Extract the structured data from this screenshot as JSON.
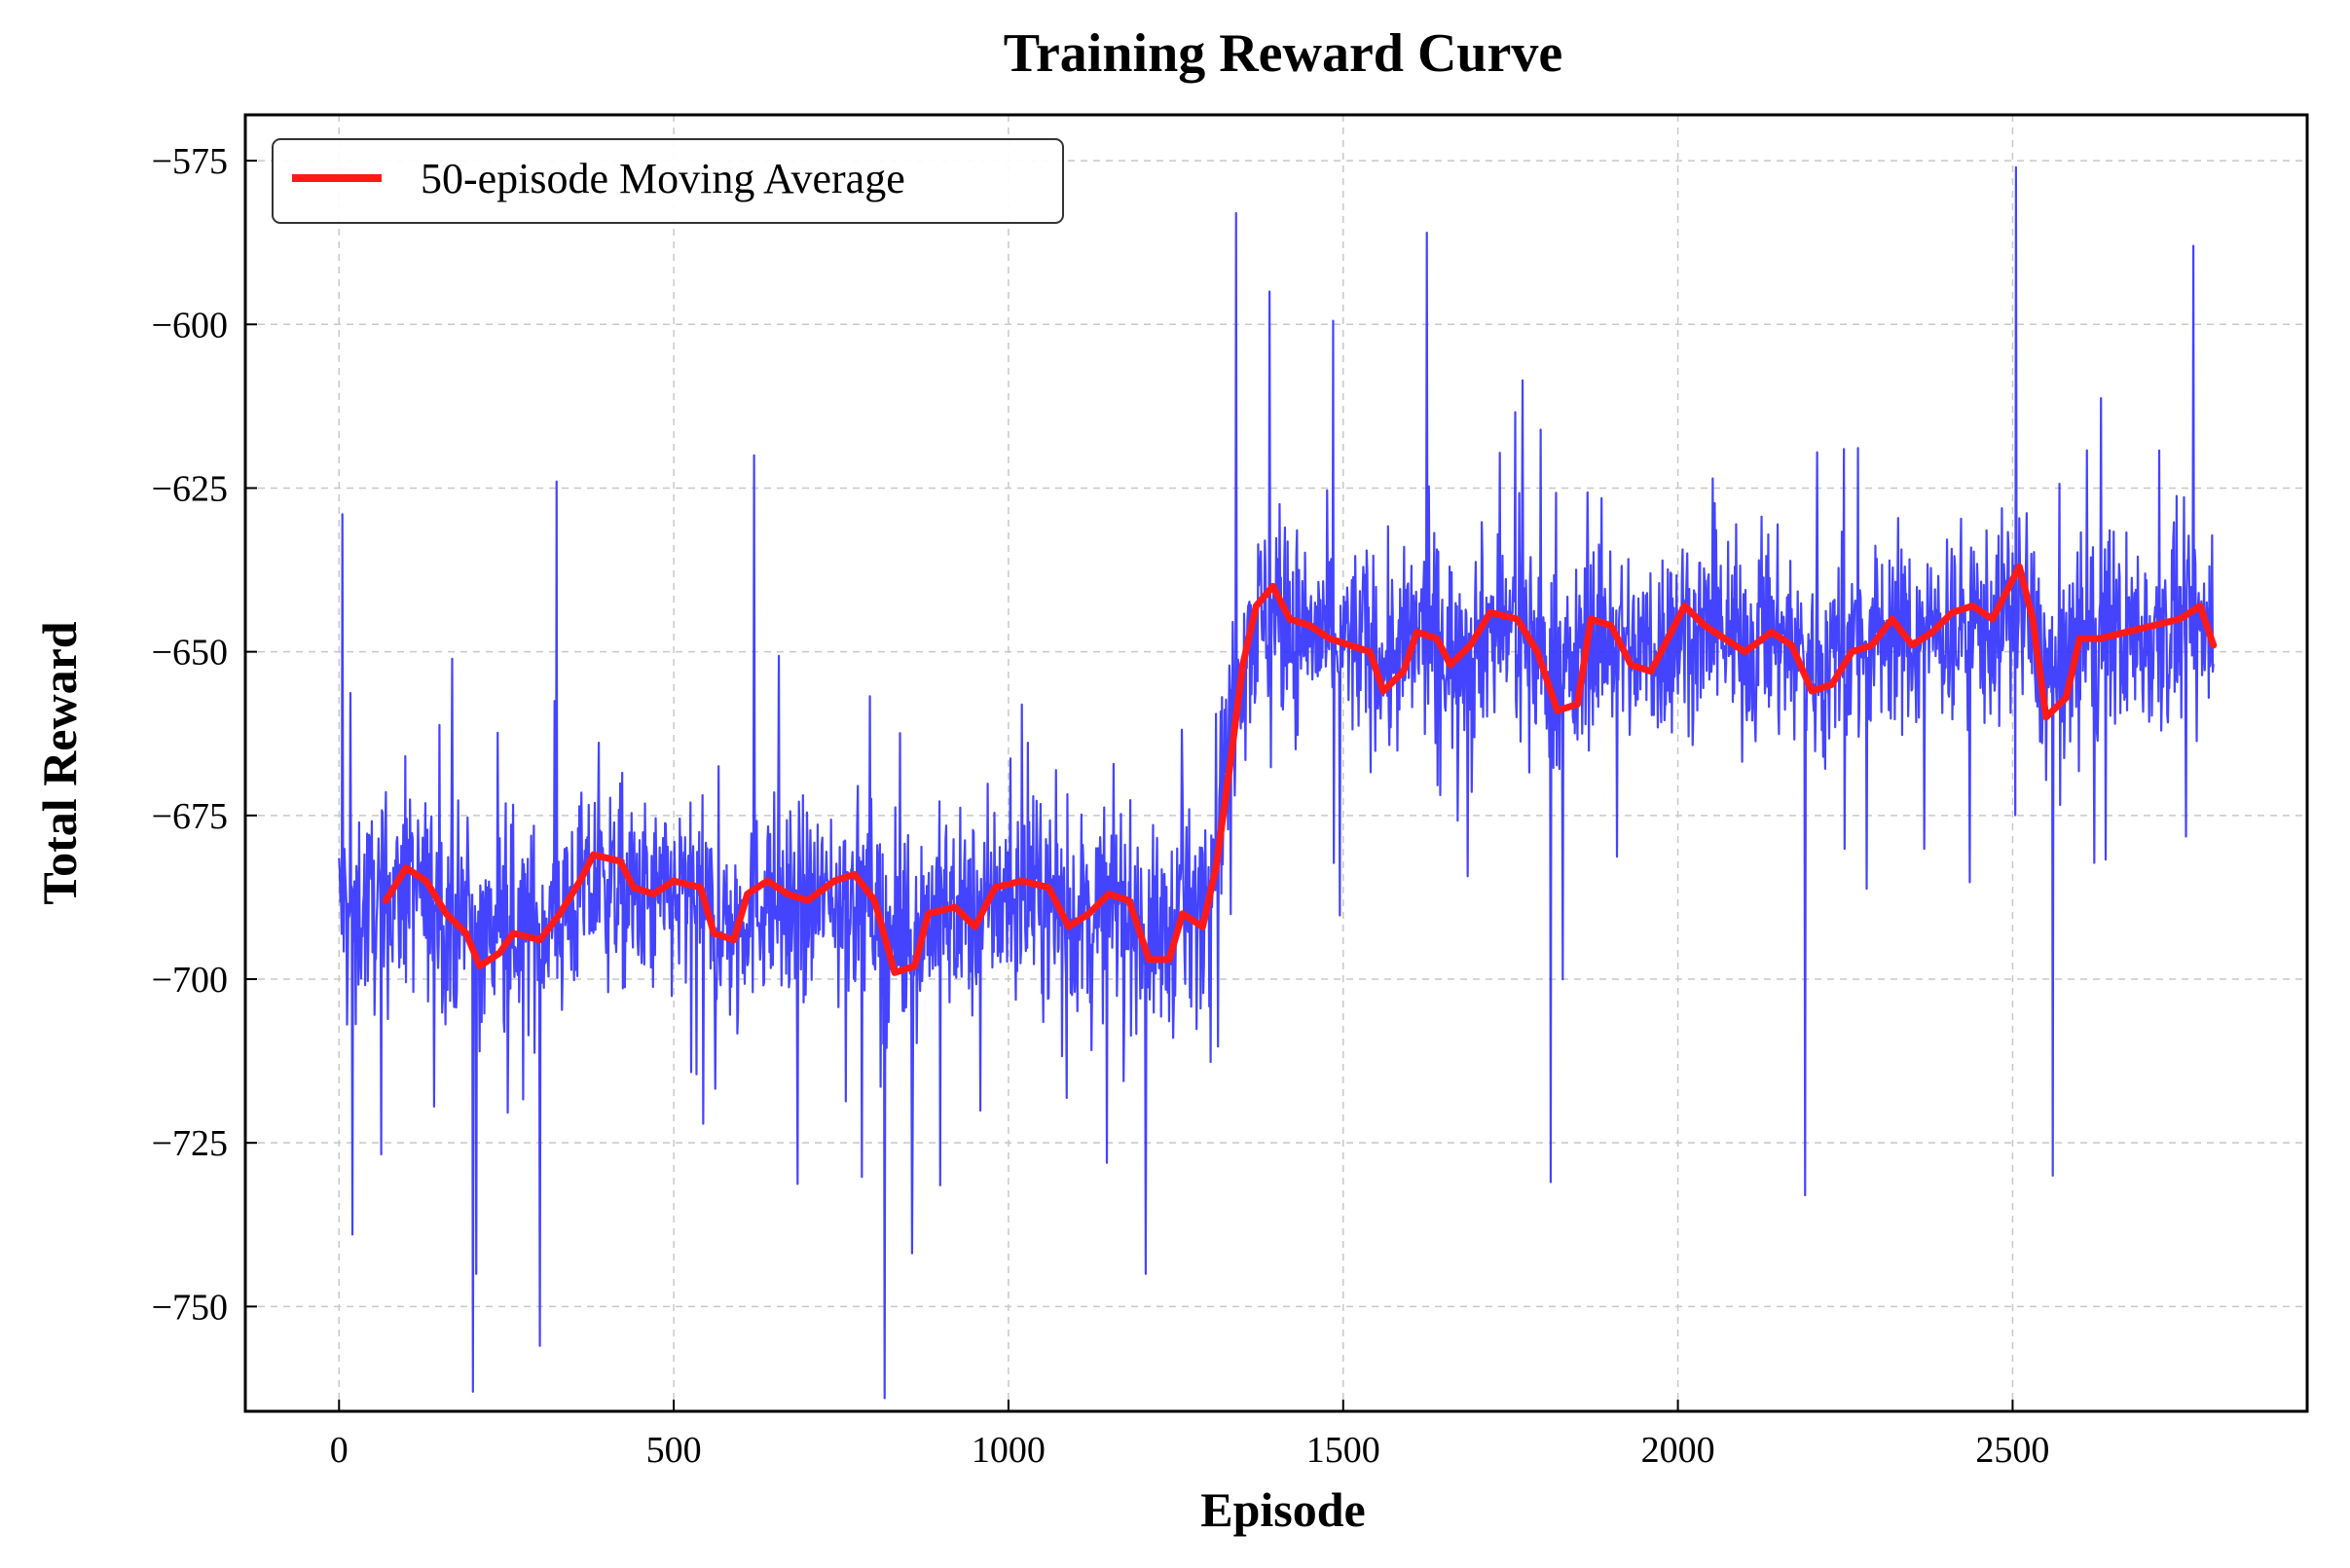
{
  "chart_data": {
    "type": "line",
    "title": "Training Reward Curve",
    "xlabel": "Episode",
    "ylabel": "Total Reward",
    "xlim": [
      -140,
      2940
    ],
    "ylim": [
      -766,
      -568
    ],
    "xticks": [
      0,
      500,
      1000,
      1500,
      2000,
      2500
    ],
    "yticks": [
      -575,
      -600,
      -625,
      -650,
      -675,
      -700,
      -725,
      -750
    ],
    "xtick_labels": [
      "0",
      "500",
      "1000",
      "1500",
      "2000",
      "2500"
    ],
    "ytick_labels": [
      "−575",
      "−600",
      "−625",
      "−650",
      "−675",
      "−700",
      "−725",
      "−750"
    ],
    "grid": true,
    "legend": {
      "position": "top-left",
      "entries": [
        "50-episode Moving Average"
      ]
    },
    "series": [
      {
        "role": "raw",
        "color": "#3030ff",
        "episodes": [
          0,
          2800
        ],
        "noise_range": {
          "min": -764,
          "max": -576
        },
        "envelope": [
          {
            "x": 0,
            "center": -690
          },
          {
            "x": 1280,
            "center": -690
          },
          {
            "x": 1340,
            "center": -648
          },
          {
            "x": 2800,
            "center": -648
          }
        ],
        "extremes": [
          {
            "x": 5,
            "y": -629
          },
          {
            "x": 20,
            "y": -739
          },
          {
            "x": 200,
            "y": -763
          },
          {
            "x": 205,
            "y": -745
          },
          {
            "x": 300,
            "y": -756
          },
          {
            "x": 325,
            "y": -624
          },
          {
            "x": 620,
            "y": -620
          },
          {
            "x": 815,
            "y": -764
          },
          {
            "x": 1205,
            "y": -745
          },
          {
            "x": 1340,
            "y": -583
          },
          {
            "x": 1390,
            "y": -595
          },
          {
            "x": 1625,
            "y": -586
          },
          {
            "x": 1810,
            "y": -731
          },
          {
            "x": 2190,
            "y": -733
          },
          {
            "x": 2505,
            "y": -576
          },
          {
            "x": 2560,
            "y": -730
          },
          {
            "x": 2770,
            "y": -588
          }
        ]
      },
      {
        "name": "50-episode Moving Average",
        "role": "moving_average",
        "color": "#ff1a1a",
        "points": [
          {
            "x": 70,
            "y": -688
          },
          {
            "x": 100,
            "y": -683
          },
          {
            "x": 130,
            "y": -685
          },
          {
            "x": 160,
            "y": -690
          },
          {
            "x": 190,
            "y": -693
          },
          {
            "x": 210,
            "y": -698
          },
          {
            "x": 240,
            "y": -696
          },
          {
            "x": 260,
            "y": -693
          },
          {
            "x": 300,
            "y": -694
          },
          {
            "x": 330,
            "y": -690
          },
          {
            "x": 360,
            "y": -685
          },
          {
            "x": 380,
            "y": -681
          },
          {
            "x": 420,
            "y": -682
          },
          {
            "x": 440,
            "y": -686
          },
          {
            "x": 470,
            "y": -687
          },
          {
            "x": 500,
            "y": -685
          },
          {
            "x": 540,
            "y": -686
          },
          {
            "x": 560,
            "y": -693
          },
          {
            "x": 590,
            "y": -694
          },
          {
            "x": 610,
            "y": -687
          },
          {
            "x": 640,
            "y": -685
          },
          {
            "x": 670,
            "y": -687
          },
          {
            "x": 700,
            "y": -688
          },
          {
            "x": 740,
            "y": -685
          },
          {
            "x": 770,
            "y": -684
          },
          {
            "x": 800,
            "y": -688
          },
          {
            "x": 830,
            "y": -699
          },
          {
            "x": 860,
            "y": -698
          },
          {
            "x": 880,
            "y": -690
          },
          {
            "x": 920,
            "y": -689
          },
          {
            "x": 950,
            "y": -692
          },
          {
            "x": 980,
            "y": -686
          },
          {
            "x": 1020,
            "y": -685
          },
          {
            "x": 1060,
            "y": -686
          },
          {
            "x": 1090,
            "y": -692
          },
          {
            "x": 1120,
            "y": -690
          },
          {
            "x": 1150,
            "y": -687
          },
          {
            "x": 1180,
            "y": -688
          },
          {
            "x": 1210,
            "y": -697
          },
          {
            "x": 1240,
            "y": -697
          },
          {
            "x": 1260,
            "y": -690
          },
          {
            "x": 1290,
            "y": -692
          },
          {
            "x": 1310,
            "y": -683
          },
          {
            "x": 1330,
            "y": -668
          },
          {
            "x": 1350,
            "y": -652
          },
          {
            "x": 1370,
            "y": -643
          },
          {
            "x": 1395,
            "y": -640
          },
          {
            "x": 1420,
            "y": -645
          },
          {
            "x": 1450,
            "y": -646
          },
          {
            "x": 1480,
            "y": -648
          },
          {
            "x": 1510,
            "y": -649
          },
          {
            "x": 1540,
            "y": -650
          },
          {
            "x": 1560,
            "y": -656
          },
          {
            "x": 1590,
            "y": -653
          },
          {
            "x": 1610,
            "y": -647
          },
          {
            "x": 1640,
            "y": -648
          },
          {
            "x": 1660,
            "y": -652
          },
          {
            "x": 1690,
            "y": -649
          },
          {
            "x": 1720,
            "y": -644
          },
          {
            "x": 1760,
            "y": -645
          },
          {
            "x": 1790,
            "y": -650
          },
          {
            "x": 1820,
            "y": -659
          },
          {
            "x": 1850,
            "y": -658
          },
          {
            "x": 1870,
            "y": -645
          },
          {
            "x": 1900,
            "y": -646
          },
          {
            "x": 1930,
            "y": -652
          },
          {
            "x": 1960,
            "y": -653
          },
          {
            "x": 1990,
            "y": -647
          },
          {
            "x": 2010,
            "y": -643
          },
          {
            "x": 2040,
            "y": -646
          },
          {
            "x": 2070,
            "y": -648
          },
          {
            "x": 2100,
            "y": -650
          },
          {
            "x": 2140,
            "y": -647
          },
          {
            "x": 2170,
            "y": -649
          },
          {
            "x": 2200,
            "y": -656
          },
          {
            "x": 2230,
            "y": -655
          },
          {
            "x": 2260,
            "y": -650
          },
          {
            "x": 2290,
            "y": -649
          },
          {
            "x": 2320,
            "y": -645
          },
          {
            "x": 2350,
            "y": -649
          },
          {
            "x": 2380,
            "y": -647
          },
          {
            "x": 2410,
            "y": -644
          },
          {
            "x": 2440,
            "y": -643
          },
          {
            "x": 2470,
            "y": -645
          },
          {
            "x": 2510,
            "y": -637
          },
          {
            "x": 2530,
            "y": -645
          },
          {
            "x": 2550,
            "y": -660
          },
          {
            "x": 2580,
            "y": -657
          },
          {
            "x": 2600,
            "y": -648
          },
          {
            "x": 2630,
            "y": -648
          },
          {
            "x": 2670,
            "y": -647
          },
          {
            "x": 2710,
            "y": -646
          },
          {
            "x": 2750,
            "y": -645
          },
          {
            "x": 2780,
            "y": -643
          },
          {
            "x": 2800,
            "y": -649
          }
        ]
      }
    ]
  }
}
